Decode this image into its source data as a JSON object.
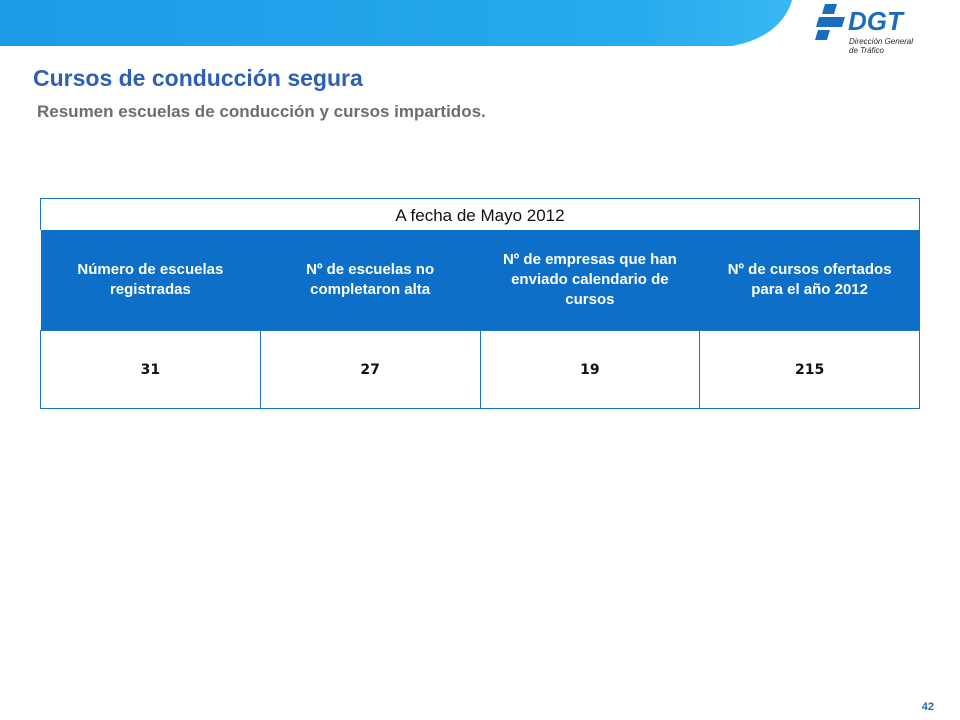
{
  "header": {
    "logo": {
      "name": "DGT",
      "subtitle_line1": "Dirección General",
      "subtitle_line2": "de Tráfico"
    },
    "band_color": "#22a3ea"
  },
  "title": "Cursos de conducción segura",
  "subtitle": "Resumen escuelas de conducción y cursos impartidos.",
  "table": {
    "date_caption": "A fecha de Mayo 2012",
    "headers": [
      "Número de escuelas registradas",
      "Nº de escuelas no completaron alta",
      "Nº de empresas que han enviado calendario de cursos",
      "Nº de cursos ofertados para el año 2012"
    ],
    "rows": [
      [
        "31",
        "27",
        "19",
        "215"
      ]
    ]
  },
  "page_number": "42",
  "colors": {
    "title": "#2e5fb8",
    "subtitle": "#6d6d6d",
    "table_header_bg": "#0d6fc8",
    "table_border": "#1a74c9",
    "logo_blue": "#1a6dbd"
  }
}
